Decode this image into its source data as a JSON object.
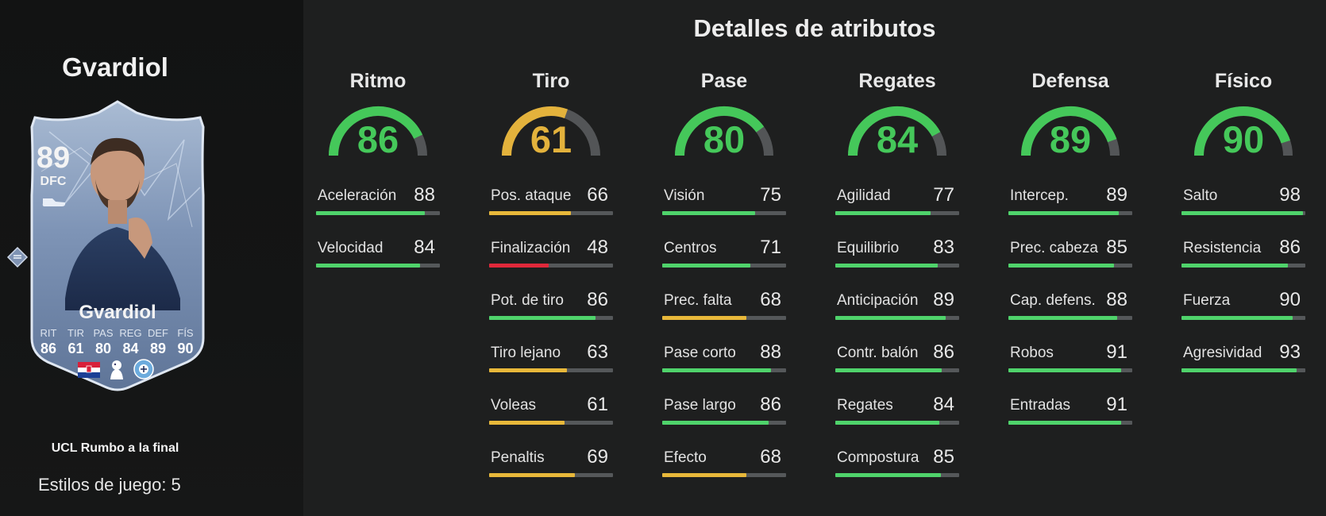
{
  "player": {
    "name": "Gvardiol",
    "card_name": "Gvardiol",
    "rating": "89",
    "position": "DFC",
    "card_stats": [
      {
        "label": "RIT",
        "value": "86"
      },
      {
        "label": "TIR",
        "value": "61"
      },
      {
        "label": "PAS",
        "value": "80"
      },
      {
        "label": "REG",
        "value": "84"
      },
      {
        "label": "DEF",
        "value": "89"
      },
      {
        "label": "FÍS",
        "value": "90"
      }
    ],
    "promo": "UCL Rumbo a la final",
    "playstyles": "Estilos de juego: 5"
  },
  "icons": {
    "flag": "croatia-flag-icon",
    "league": "premier-league-icon",
    "club": "manchester-city-icon",
    "badge": "card-badge-icon",
    "boot": "boot-icon"
  },
  "colors": {
    "green": "#4fd36b",
    "yellow": "#e8b83a",
    "red": "#e0283a",
    "track": "#55585a",
    "gauge_green": "#45c85a",
    "gauge_yellow": "#e3b23c",
    "gauge_track": "#535557"
  },
  "section_title": "Detalles de atributos",
  "categories": [
    {
      "name": "Ritmo",
      "value": "86",
      "attrs": [
        {
          "name": "Aceleración",
          "value": "88"
        },
        {
          "name": "Velocidad",
          "value": "84"
        }
      ]
    },
    {
      "name": "Tiro",
      "value": "61",
      "attrs": [
        {
          "name": "Pos. ataque",
          "value": "66"
        },
        {
          "name": "Finalización",
          "value": "48"
        },
        {
          "name": "Pot. de tiro",
          "value": "86"
        },
        {
          "name": "Tiro lejano",
          "value": "63"
        },
        {
          "name": "Voleas",
          "value": "61"
        },
        {
          "name": "Penaltis",
          "value": "69"
        }
      ]
    },
    {
      "name": "Pase",
      "value": "80",
      "attrs": [
        {
          "name": "Visión",
          "value": "75"
        },
        {
          "name": "Centros",
          "value": "71"
        },
        {
          "name": "Prec. falta",
          "value": "68"
        },
        {
          "name": "Pase corto",
          "value": "88"
        },
        {
          "name": "Pase largo",
          "value": "86"
        },
        {
          "name": "Efecto",
          "value": "68"
        }
      ]
    },
    {
      "name": "Regates",
      "value": "84",
      "attrs": [
        {
          "name": "Agilidad",
          "value": "77"
        },
        {
          "name": "Equilibrio",
          "value": "83"
        },
        {
          "name": "Anticipación",
          "value": "89"
        },
        {
          "name": "Contr. balón",
          "value": "86"
        },
        {
          "name": "Regates",
          "value": "84"
        },
        {
          "name": "Compostura",
          "value": "85"
        }
      ]
    },
    {
      "name": "Defensa",
      "value": "89",
      "attrs": [
        {
          "name": "Intercep.",
          "value": "89"
        },
        {
          "name": "Prec. cabeza",
          "value": "85"
        },
        {
          "name": "Cap. defens.",
          "value": "88"
        },
        {
          "name": "Robos",
          "value": "91"
        },
        {
          "name": "Entradas",
          "value": "91"
        }
      ]
    },
    {
      "name": "Físico",
      "value": "90",
      "attrs": [
        {
          "name": "Salto",
          "value": "98"
        },
        {
          "name": "Resistencia",
          "value": "86"
        },
        {
          "name": "Fuerza",
          "value": "90"
        },
        {
          "name": "Agresividad",
          "value": "93"
        }
      ]
    }
  ]
}
